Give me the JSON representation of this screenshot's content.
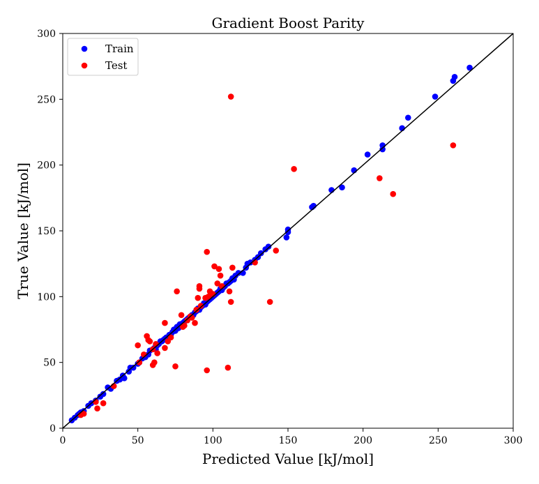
{
  "chart_data": {
    "type": "scatter",
    "title": "Gradient Boost Parity",
    "xlabel": "Predicted Value [kJ/mol]",
    "ylabel": "True Value [kJ/mol]",
    "xlim": [
      0,
      300
    ],
    "ylim": [
      0,
      300
    ],
    "x_ticks": [
      0,
      50,
      100,
      150,
      200,
      250,
      300
    ],
    "y_ticks": [
      0,
      50,
      100,
      150,
      200,
      250,
      300
    ],
    "grid": false,
    "legend_position": "top-left",
    "parity_line": true,
    "colors": {
      "train": "#0000ff",
      "test": "#ff0000",
      "parity": "#000000"
    },
    "series": [
      {
        "name": "Train",
        "color": "#0000ff",
        "points": [
          [
            6,
            6
          ],
          [
            8,
            8
          ],
          [
            10,
            10
          ],
          [
            11,
            11
          ],
          [
            12,
            12
          ],
          [
            14,
            13
          ],
          [
            17,
            17
          ],
          [
            19,
            19
          ],
          [
            22,
            21
          ],
          [
            25,
            24
          ],
          [
            27,
            26
          ],
          [
            30,
            31
          ],
          [
            32,
            30
          ],
          [
            36,
            36
          ],
          [
            38,
            37
          ],
          [
            40,
            40
          ],
          [
            41,
            38
          ],
          [
            44,
            43
          ],
          [
            45,
            46
          ],
          [
            47,
            46
          ],
          [
            50,
            49
          ],
          [
            51,
            50
          ],
          [
            53,
            53
          ],
          [
            55,
            54
          ],
          [
            57,
            56
          ],
          [
            58,
            59
          ],
          [
            60,
            60
          ],
          [
            61,
            61
          ],
          [
            62,
            60
          ],
          [
            63,
            63
          ],
          [
            64,
            64
          ],
          [
            65,
            66
          ],
          [
            66,
            66
          ],
          [
            67,
            67
          ],
          [
            68,
            68
          ],
          [
            69,
            69
          ],
          [
            70,
            69
          ],
          [
            71,
            71
          ],
          [
            72,
            71
          ],
          [
            73,
            73
          ],
          [
            74,
            75
          ],
          [
            75,
            74
          ],
          [
            76,
            77
          ],
          [
            77,
            76
          ],
          [
            78,
            79
          ],
          [
            79,
            78
          ],
          [
            80,
            80
          ],
          [
            81,
            81
          ],
          [
            82,
            82
          ],
          [
            83,
            83
          ],
          [
            84,
            84
          ],
          [
            85,
            85
          ],
          [
            86,
            86
          ],
          [
            87,
            86
          ],
          [
            88,
            88
          ],
          [
            89,
            89
          ],
          [
            90,
            91
          ],
          [
            91,
            90
          ],
          [
            92,
            92
          ],
          [
            93,
            93
          ],
          [
            94,
            95
          ],
          [
            95,
            94
          ],
          [
            96,
            96
          ],
          [
            97,
            97
          ],
          [
            98,
            98
          ],
          [
            99,
            99
          ],
          [
            100,
            100
          ],
          [
            101,
            101
          ],
          [
            102,
            102
          ],
          [
            103,
            103
          ],
          [
            104,
            104
          ],
          [
            105,
            106
          ],
          [
            106,
            105
          ],
          [
            107,
            107
          ],
          [
            108,
            108
          ],
          [
            109,
            110
          ],
          [
            110,
            110
          ],
          [
            111,
            111
          ],
          [
            112,
            112
          ],
          [
            113,
            114
          ],
          [
            114,
            113
          ],
          [
            115,
            116
          ],
          [
            117,
            118
          ],
          [
            120,
            118
          ],
          [
            122,
            122
          ],
          [
            123,
            125
          ],
          [
            125,
            126
          ],
          [
            128,
            128
          ],
          [
            130,
            130
          ],
          [
            132,
            133
          ],
          [
            135,
            136
          ],
          [
            137,
            138
          ],
          [
            149,
            145
          ],
          [
            150,
            149
          ],
          [
            150,
            151
          ],
          [
            166,
            168
          ],
          [
            167,
            169
          ],
          [
            179,
            181
          ],
          [
            186,
            183
          ],
          [
            194,
            196
          ],
          [
            203,
            208
          ],
          [
            213,
            215
          ],
          [
            213,
            212
          ],
          [
            226,
            228
          ],
          [
            230,
            236
          ],
          [
            248,
            252
          ],
          [
            260,
            264
          ],
          [
            261,
            267
          ],
          [
            271,
            274
          ]
        ]
      },
      {
        "name": "Test",
        "color": "#ff0000",
        "points": [
          [
            12,
            10
          ],
          [
            14,
            11
          ],
          [
            22,
            20
          ],
          [
            23,
            15
          ],
          [
            27,
            19
          ],
          [
            34,
            32
          ],
          [
            50,
            63
          ],
          [
            51,
            50
          ],
          [
            54,
            56
          ],
          [
            56,
            70
          ],
          [
            57,
            67
          ],
          [
            58,
            66
          ],
          [
            60,
            60
          ],
          [
            60,
            48
          ],
          [
            61,
            50
          ],
          [
            62,
            64
          ],
          [
            63,
            57
          ],
          [
            68,
            61
          ],
          [
            68,
            80
          ],
          [
            70,
            66
          ],
          [
            72,
            69
          ],
          [
            75,
            47
          ],
          [
            76,
            104
          ],
          [
            79,
            86
          ],
          [
            80,
            77
          ],
          [
            81,
            78
          ],
          [
            83,
            82
          ],
          [
            85,
            85
          ],
          [
            86,
            84
          ],
          [
            88,
            80
          ],
          [
            89,
            90
          ],
          [
            90,
            99
          ],
          [
            91,
            108
          ],
          [
            91,
            106
          ],
          [
            92,
            93
          ],
          [
            95,
            99
          ],
          [
            96,
            134
          ],
          [
            96,
            44
          ],
          [
            97,
            100
          ],
          [
            98,
            104
          ],
          [
            100,
            102
          ],
          [
            101,
            123
          ],
          [
            103,
            110
          ],
          [
            104,
            121
          ],
          [
            105,
            116
          ],
          [
            106,
            108
          ],
          [
            110,
            46
          ],
          [
            111,
            104
          ],
          [
            112,
            252
          ],
          [
            112,
            96
          ],
          [
            113,
            122
          ],
          [
            128,
            126
          ],
          [
            138,
            96
          ],
          [
            142,
            135
          ],
          [
            154,
            197
          ],
          [
            211,
            190
          ],
          [
            220,
            178
          ],
          [
            260,
            215
          ]
        ]
      }
    ]
  }
}
